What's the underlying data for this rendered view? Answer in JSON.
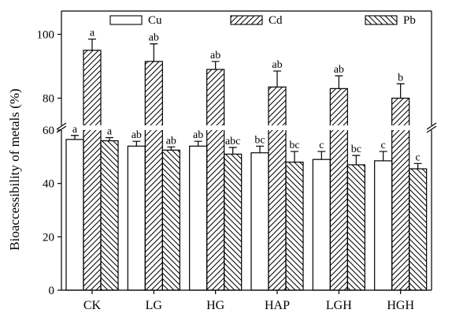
{
  "chart_data": {
    "type": "bar",
    "ylabel": "Bioaccessibility of metals (%)",
    "categories": [
      "CK",
      "LG",
      "HG",
      "HAP",
      "LGH",
      "HGH"
    ],
    "axis_break": [
      60,
      75
    ],
    "lower_yticks": [
      0,
      20,
      40,
      60
    ],
    "upper_yticks": [
      80,
      100
    ],
    "legend_position": "top",
    "series": [
      {
        "name": "Cu",
        "pattern": "none",
        "values": [
          56.5,
          54.0,
          54.0,
          51.5,
          49.0,
          48.5
        ],
        "errors": [
          1.5,
          1.8,
          1.8,
          2.5,
          3.0,
          3.5
        ],
        "labels": [
          "a",
          "ab",
          "ab",
          "bc",
          "c",
          "c"
        ]
      },
      {
        "name": "Cd",
        "pattern": "forward-hatch",
        "values": [
          95.0,
          91.5,
          89.0,
          83.5,
          83.0,
          80.0
        ],
        "errors": [
          3.5,
          5.5,
          2.5,
          5.0,
          4.0,
          4.5
        ],
        "labels": [
          "a",
          "ab",
          "ab",
          "ab",
          "ab",
          "b"
        ]
      },
      {
        "name": "Pb",
        "pattern": "back-hatch",
        "values": [
          56.0,
          52.5,
          51.0,
          48.0,
          47.0,
          45.5
        ],
        "errors": [
          1.2,
          1.2,
          2.5,
          4.0,
          3.5,
          2.0
        ],
        "labels": [
          "a",
          "ab",
          "abc",
          "bc",
          "bc",
          "c"
        ]
      }
    ]
  }
}
